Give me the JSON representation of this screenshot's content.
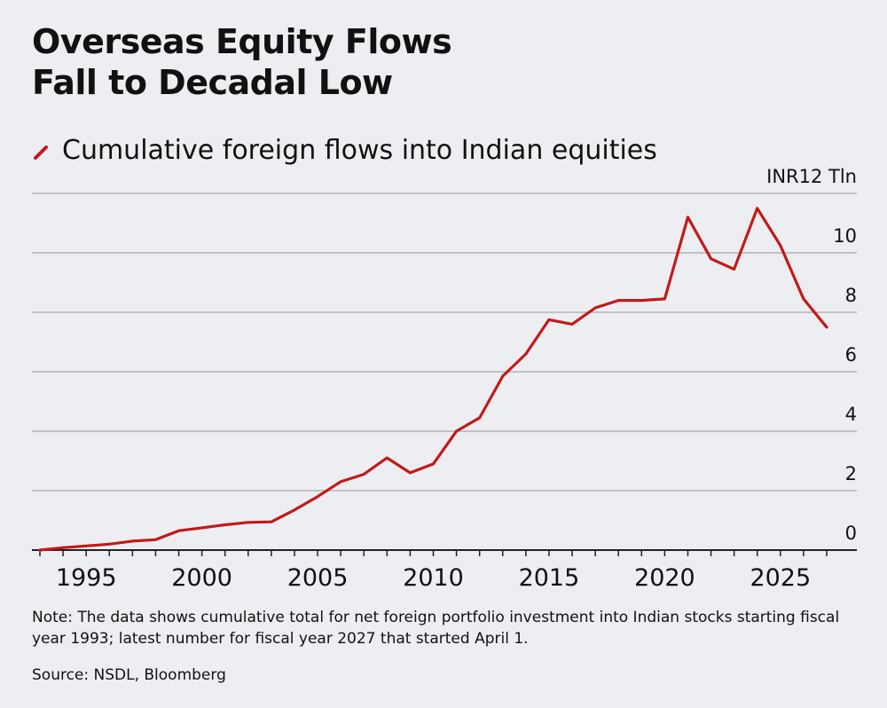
{
  "title_line1": "Overseas Equity Flows",
  "title_line2": "Fall to Decadal Low",
  "legend_label": "Cumulative foreign flows into Indian equities",
  "note": "Note: The data shows cumulative total for net foreign portfolio investment into Indian stocks starting fiscal year 1993; latest number for fiscal year 2027 that started April 1.",
  "source": "Source: NSDL, Bloomberg",
  "colors": {
    "line": "#c21a1a",
    "grid": "#a8a8ac",
    "axis": "#222222",
    "background": "#edeef2",
    "text": "#111111"
  },
  "chart_data": {
    "type": "line",
    "title": "Overseas Equity Flows Fall to Decadal Low",
    "ylabel_unit": "INR12 Tln",
    "ylim": [
      0,
      12
    ],
    "yticks": [
      0,
      2,
      4,
      6,
      8,
      10,
      12
    ],
    "ytick_labels": [
      "0",
      "2",
      "4",
      "6",
      "8",
      "10",
      "INR12 Tln"
    ],
    "xlim": [
      1993,
      2028
    ],
    "xticks": [
      1995,
      2000,
      2005,
      2010,
      2015,
      2020,
      2025
    ],
    "xtick_labels": [
      "1995",
      "2000",
      "2005",
      "2010",
      "2015",
      "2020",
      "2025"
    ],
    "grid": true,
    "y_axis_side": "right",
    "series": [
      {
        "name": "Cumulative foreign flows into Indian equities",
        "x": [
          1993,
          1994,
          1995,
          1996,
          1997,
          1998,
          1999,
          2000,
          2001,
          2002,
          2003,
          2004,
          2005,
          2006,
          2007,
          2008,
          2009,
          2010,
          2011,
          2012,
          2013,
          2014,
          2015,
          2016,
          2017,
          2018,
          2019,
          2020,
          2021,
          2022,
          2023,
          2024,
          2025,
          2026,
          2027
        ],
        "y": [
          0.0,
          0.08,
          0.14,
          0.2,
          0.3,
          0.35,
          0.65,
          0.75,
          0.85,
          0.93,
          0.95,
          1.35,
          1.8,
          2.3,
          2.55,
          3.1,
          2.6,
          2.9,
          4.0,
          4.45,
          5.85,
          6.6,
          7.75,
          7.6,
          8.15,
          8.4,
          8.4,
          8.45,
          11.2,
          9.8,
          9.45,
          11.5,
          10.25,
          8.45,
          7.5
        ]
      }
    ]
  }
}
